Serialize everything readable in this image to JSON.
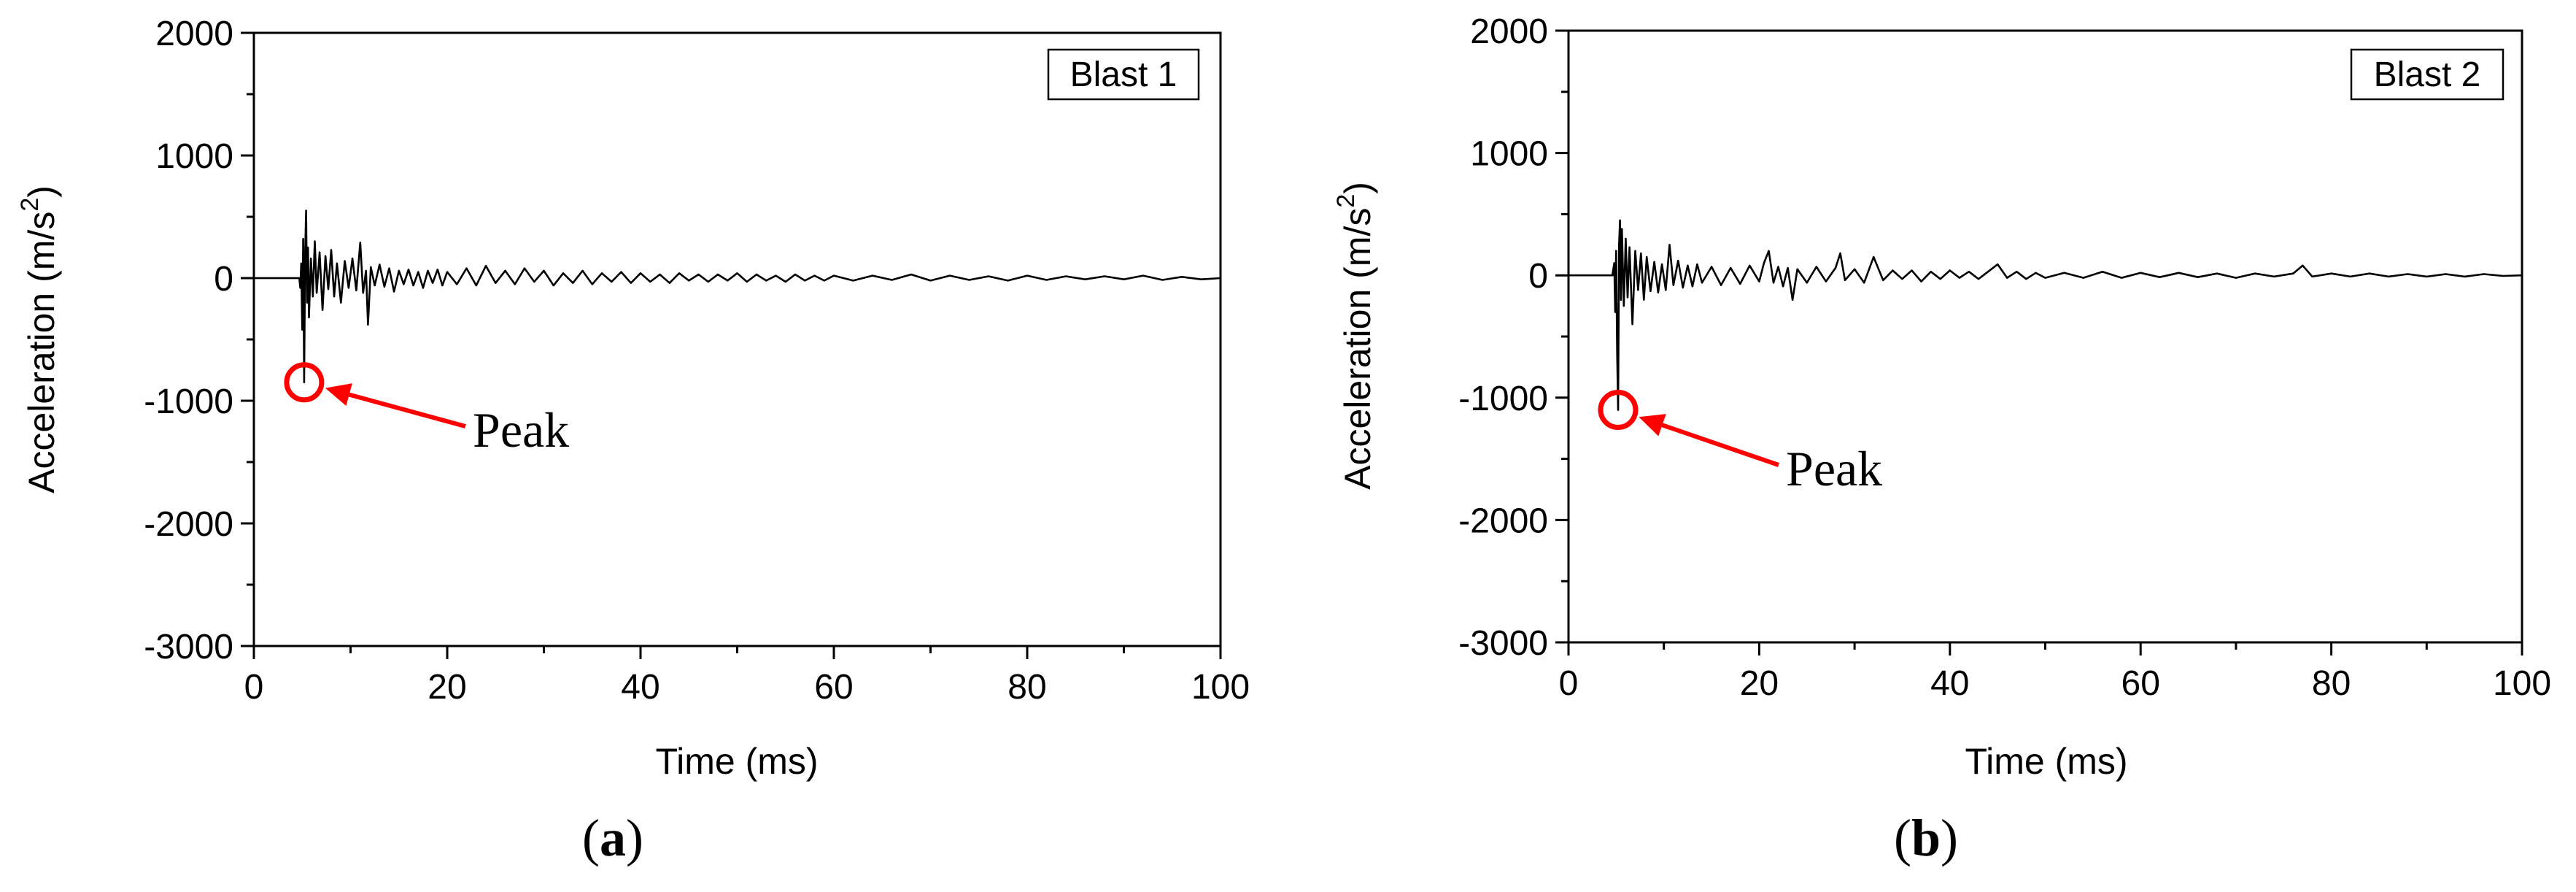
{
  "chart_data": [
    {
      "type": "line",
      "panel_label": "a",
      "legend_box": "Blast 1",
      "xlabel": "Time (ms)",
      "ylabel_main": "Acceleration (m/s",
      "ylabel_sup": "2",
      "ylabel_close": ")",
      "xlim": [
        0,
        100
      ],
      "ylim": [
        -3000,
        2000
      ],
      "xticks": [
        0,
        20,
        40,
        60,
        80,
        100
      ],
      "xtick_labels": [
        "0",
        "20",
        "40",
        "60",
        "80",
        "100"
      ],
      "yticks": [
        -3000,
        -2000,
        -1000,
        0,
        1000,
        2000
      ],
      "ytick_labels": [
        "-3000",
        "-2000",
        "-1000",
        "0",
        "1000",
        "2000"
      ],
      "series_color": "#000000",
      "onset_ms": 5.0,
      "min_value": -850,
      "max_value": 550,
      "peak": {
        "x": 5.2,
        "y": -850,
        "label": "Peak",
        "color": "#ff0000"
      },
      "trace": [
        [
          0,
          0
        ],
        [
          4.7,
          0
        ],
        [
          4.8,
          -80
        ],
        [
          4.9,
          120
        ],
        [
          5.0,
          -420
        ],
        [
          5.1,
          320
        ],
        [
          5.2,
          -850
        ],
        [
          5.3,
          180
        ],
        [
          5.4,
          550
        ],
        [
          5.5,
          -200
        ],
        [
          5.6,
          250
        ],
        [
          5.7,
          -320
        ],
        [
          5.9,
          160
        ],
        [
          6.1,
          -150
        ],
        [
          6.3,
          300
        ],
        [
          6.5,
          -120
        ],
        [
          6.8,
          210
        ],
        [
          7.1,
          -260
        ],
        [
          7.4,
          180
        ],
        [
          7.7,
          -90
        ],
        [
          8.0,
          230
        ],
        [
          8.3,
          -150
        ],
        [
          8.6,
          120
        ],
        [
          9.0,
          -200
        ],
        [
          9.4,
          140
        ],
        [
          9.8,
          -80
        ],
        [
          10.2,
          160
        ],
        [
          10.6,
          -100
        ],
        [
          11.0,
          290
        ],
        [
          11.3,
          -120
        ],
        [
          11.6,
          60
        ],
        [
          11.8,
          -380
        ],
        [
          12.1,
          90
        ],
        [
          12.5,
          -60
        ],
        [
          13.0,
          110
        ],
        [
          13.5,
          -70
        ],
        [
          14.0,
          80
        ],
        [
          14.5,
          -110
        ],
        [
          15.0,
          60
        ],
        [
          15.5,
          -50
        ],
        [
          16.0,
          70
        ],
        [
          16.5,
          -60
        ],
        [
          17.0,
          50
        ],
        [
          17.5,
          -80
        ],
        [
          18.0,
          60
        ],
        [
          18.5,
          -40
        ],
        [
          19.0,
          70
        ],
        [
          19.5,
          -60
        ],
        [
          20.0,
          50
        ],
        [
          21,
          -50
        ],
        [
          22,
          80
        ],
        [
          23,
          -60
        ],
        [
          24,
          100
        ],
        [
          25,
          -40
        ],
        [
          26,
          60
        ],
        [
          27,
          -50
        ],
        [
          28,
          80
        ],
        [
          29,
          -30
        ],
        [
          30,
          60
        ],
        [
          31,
          -60
        ],
        [
          32,
          40
        ],
        [
          33,
          -40
        ],
        [
          34,
          60
        ],
        [
          35,
          -50
        ],
        [
          36,
          40
        ],
        [
          37,
          -30
        ],
        [
          38,
          50
        ],
        [
          39,
          -40
        ],
        [
          40,
          40
        ],
        [
          41,
          -30
        ],
        [
          42,
          30
        ],
        [
          43,
          -40
        ],
        [
          44,
          40
        ],
        [
          45,
          -20
        ],
        [
          46,
          30
        ],
        [
          47,
          -30
        ],
        [
          48,
          30
        ],
        [
          49,
          -20
        ],
        [
          50,
          40
        ],
        [
          51,
          -30
        ],
        [
          52,
          30
        ],
        [
          53,
          -20
        ],
        [
          54,
          20
        ],
        [
          55,
          -30
        ],
        [
          56,
          30
        ],
        [
          57,
          -20
        ],
        [
          58,
          20
        ],
        [
          59,
          -20
        ],
        [
          60,
          20
        ],
        [
          62,
          -20
        ],
        [
          64,
          20
        ],
        [
          66,
          -15
        ],
        [
          68,
          30
        ],
        [
          70,
          -20
        ],
        [
          72,
          20
        ],
        [
          74,
          -15
        ],
        [
          76,
          15
        ],
        [
          78,
          -20
        ],
        [
          80,
          20
        ],
        [
          82,
          -15
        ],
        [
          84,
          15
        ],
        [
          86,
          -10
        ],
        [
          88,
          15
        ],
        [
          90,
          -10
        ],
        [
          92,
          20
        ],
        [
          94,
          -15
        ],
        [
          96,
          10
        ],
        [
          98,
          -10
        ],
        [
          100,
          0
        ]
      ]
    },
    {
      "type": "line",
      "panel_label": "b",
      "legend_box": "Blast 2",
      "xlabel": "Time (ms)",
      "ylabel_main": "Acceleration (m/s",
      "ylabel_sup": "2",
      "ylabel_close": ")",
      "xlim": [
        0,
        100
      ],
      "ylim": [
        -3000,
        2000
      ],
      "xticks": [
        0,
        20,
        40,
        60,
        80,
        100
      ],
      "xtick_labels": [
        "0",
        "20",
        "40",
        "60",
        "80",
        "100"
      ],
      "yticks": [
        -3000,
        -2000,
        -1000,
        0,
        1000,
        2000
      ],
      "ytick_labels": [
        "-3000",
        "-2000",
        "-1000",
        "0",
        "1000",
        "2000"
      ],
      "series_color": "#000000",
      "onset_ms": 5.0,
      "min_value": -1100,
      "max_value": 450,
      "peak": {
        "x": 5.2,
        "y": -1100,
        "label": "Peak",
        "color": "#ff0000"
      },
      "trace": [
        [
          0,
          0
        ],
        [
          4.6,
          0
        ],
        [
          4.8,
          100
        ],
        [
          4.9,
          -300
        ],
        [
          5.0,
          200
        ],
        [
          5.1,
          -650
        ],
        [
          5.2,
          -1100
        ],
        [
          5.3,
          250
        ],
        [
          5.4,
          450
        ],
        [
          5.5,
          -200
        ],
        [
          5.6,
          380
        ],
        [
          5.8,
          -250
        ],
        [
          6.0,
          300
        ],
        [
          6.2,
          -180
        ],
        [
          6.4,
          230
        ],
        [
          6.7,
          -400
        ],
        [
          7.0,
          200
        ],
        [
          7.3,
          -120
        ],
        [
          7.6,
          180
        ],
        [
          7.9,
          -200
        ],
        [
          8.2,
          150
        ],
        [
          8.6,
          -130
        ],
        [
          9.0,
          110
        ],
        [
          9.4,
          -140
        ],
        [
          9.8,
          90
        ],
        [
          10.2,
          -120
        ],
        [
          10.6,
          250
        ],
        [
          11.0,
          -80
        ],
        [
          11.5,
          120
        ],
        [
          12,
          -100
        ],
        [
          12.5,
          80
        ],
        [
          13,
          -90
        ],
        [
          13.5,
          90
        ],
        [
          14,
          -60
        ],
        [
          15,
          70
        ],
        [
          16,
          -80
        ],
        [
          17,
          60
        ],
        [
          18,
          -70
        ],
        [
          19,
          80
        ],
        [
          20,
          -50
        ],
        [
          20.5,
          100
        ],
        [
          21,
          200
        ],
        [
          21.5,
          -60
        ],
        [
          22,
          70
        ],
        [
          22.5,
          -90
        ],
        [
          23,
          60
        ],
        [
          23.5,
          -200
        ],
        [
          24,
          50
        ],
        [
          25,
          -60
        ],
        [
          26,
          70
        ],
        [
          27,
          -50
        ],
        [
          28,
          60
        ],
        [
          28.5,
          180
        ],
        [
          29,
          -40
        ],
        [
          30,
          50
        ],
        [
          31,
          -60
        ],
        [
          32,
          150
        ],
        [
          33,
          -40
        ],
        [
          34,
          40
        ],
        [
          35,
          -30
        ],
        [
          36,
          40
        ],
        [
          37,
          -50
        ],
        [
          38,
          30
        ],
        [
          39,
          -30
        ],
        [
          40,
          40
        ],
        [
          41,
          -20
        ],
        [
          42,
          30
        ],
        [
          43,
          -30
        ],
        [
          44,
          30
        ],
        [
          45,
          90
        ],
        [
          46,
          -20
        ],
        [
          47,
          30
        ],
        [
          48,
          -30
        ],
        [
          49,
          20
        ],
        [
          50,
          -20
        ],
        [
          52,
          20
        ],
        [
          54,
          -20
        ],
        [
          56,
          30
        ],
        [
          58,
          -20
        ],
        [
          60,
          20
        ],
        [
          62,
          -15
        ],
        [
          64,
          20
        ],
        [
          66,
          -15
        ],
        [
          68,
          15
        ],
        [
          70,
          -20
        ],
        [
          72,
          15
        ],
        [
          74,
          -10
        ],
        [
          76,
          15
        ],
        [
          77,
          80
        ],
        [
          78,
          -10
        ],
        [
          80,
          15
        ],
        [
          82,
          -10
        ],
        [
          84,
          15
        ],
        [
          86,
          -10
        ],
        [
          88,
          10
        ],
        [
          90,
          -10
        ],
        [
          92,
          10
        ],
        [
          94,
          -10
        ],
        [
          96,
          10
        ],
        [
          98,
          -5
        ],
        [
          100,
          0
        ]
      ]
    }
  ]
}
